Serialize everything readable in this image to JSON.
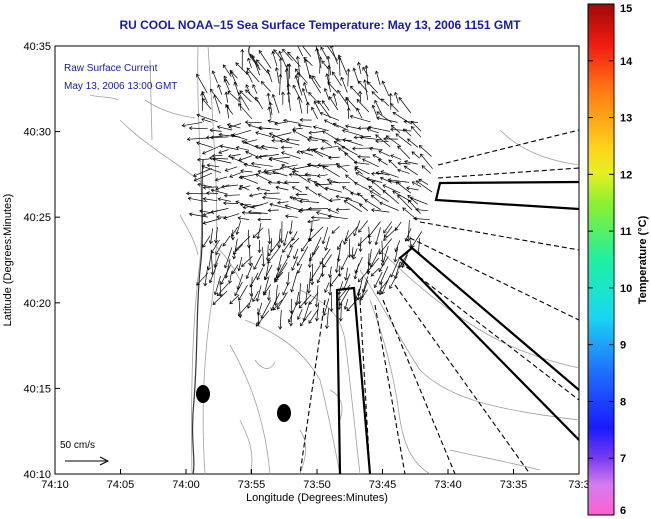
{
  "title": "RU COOL  NOAA–15  Sea Surface Temperature:  May 13, 2006 1151 GMT",
  "annotation": {
    "line1": "Raw Surface Current",
    "line2": "May 13, 2006 13:00 GMT"
  },
  "scale_label": "50 cm/s",
  "xaxis": {
    "label": "Longitude (Degrees:Minutes)",
    "ticks": [
      "74:10",
      "74:05",
      "74:00",
      "73:55",
      "73:50",
      "73:45",
      "73:40",
      "73:35",
      "73:3"
    ]
  },
  "yaxis": {
    "label": "Latitude (Degrees:Minutes)",
    "ticks": [
      "40:35",
      "40:30",
      "40:25",
      "40:20",
      "40:15",
      "40:10"
    ]
  },
  "colorbar": {
    "label": "Temperature (°C)",
    "ticks": [
      "15",
      "14",
      "13",
      "12",
      "11",
      "10",
      "9",
      "8",
      "7",
      "6"
    ],
    "min": 6,
    "max": 15
  },
  "colors": {
    "title": "#1a1aa6",
    "annotation": "#1a1aa6",
    "land": "#ffffff",
    "contour": "#9a9a9a",
    "vector": "#000000"
  }
}
